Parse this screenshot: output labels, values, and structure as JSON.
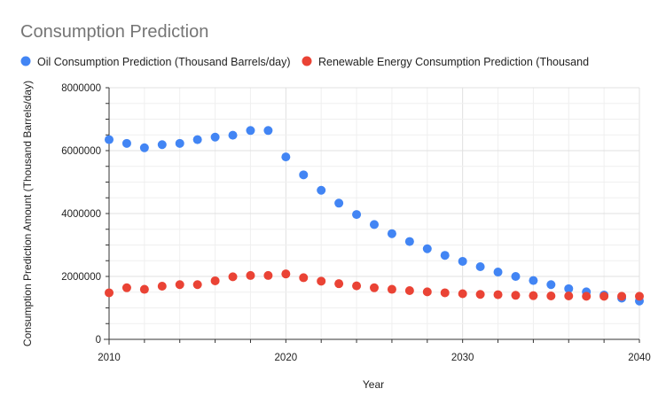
{
  "chart_data": {
    "type": "scatter",
    "title": "Consumption Prediction",
    "xlabel": "Year",
    "ylabel": "Consumption Prediction Amount (Thousand Barrels/day)",
    "xlim": [
      2010,
      2040
    ],
    "ylim": [
      0,
      8000000
    ],
    "x_ticks": [
      "2010",
      "2020",
      "2030",
      "2040"
    ],
    "y_ticks": [
      "0",
      "2000000",
      "4000000",
      "6000000",
      "8000000"
    ],
    "grid": true,
    "legend_position": "top",
    "x": [
      2010,
      2011,
      2012,
      2013,
      2014,
      2015,
      2016,
      2017,
      2018,
      2019,
      2020,
      2021,
      2022,
      2023,
      2024,
      2025,
      2026,
      2027,
      2028,
      2029,
      2030,
      2031,
      2032,
      2033,
      2034,
      2035,
      2036,
      2037,
      2038,
      2039,
      2040
    ],
    "series": [
      {
        "name": "Oil Consumption Prediction (Thousand Barrels/day)",
        "color": "#4285f4",
        "values": [
          6350000,
          6230000,
          6090000,
          6190000,
          6230000,
          6350000,
          6430000,
          6490000,
          6640000,
          6640000,
          5800000,
          5230000,
          4740000,
          4330000,
          3970000,
          3650000,
          3360000,
          3110000,
          2880000,
          2670000,
          2480000,
          2310000,
          2140000,
          2000000,
          1870000,
          1740000,
          1610000,
          1510000,
          1410000,
          1310000,
          1220000
        ]
      },
      {
        "name": "Renewable Energy Consumption Prediction (Thousand",
        "color": "#ea4335",
        "values": [
          1480000,
          1640000,
          1590000,
          1690000,
          1740000,
          1740000,
          1860000,
          1990000,
          2030000,
          2030000,
          2080000,
          1960000,
          1850000,
          1770000,
          1700000,
          1640000,
          1590000,
          1550000,
          1510000,
          1480000,
          1450000,
          1430000,
          1420000,
          1400000,
          1390000,
          1380000,
          1380000,
          1370000,
          1370000,
          1370000,
          1370000
        ]
      }
    ]
  }
}
